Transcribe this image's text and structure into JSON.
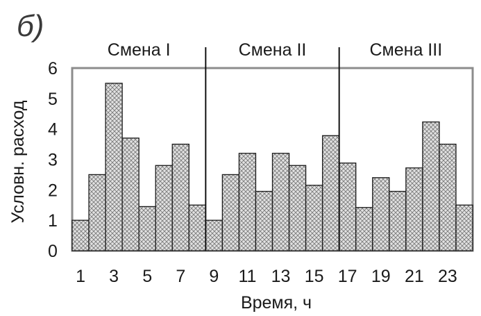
{
  "panel_label": "б)",
  "chart_data": {
    "type": "bar",
    "xlabel": "Время, ч",
    "ylabel": "Условн. расход",
    "ylim": [
      0,
      6
    ],
    "yticks": [
      0,
      1,
      2,
      3,
      4,
      5,
      6
    ],
    "x": [
      1,
      2,
      3,
      4,
      5,
      6,
      7,
      8,
      9,
      10,
      11,
      12,
      13,
      14,
      15,
      16,
      17,
      18,
      19,
      20,
      21,
      22,
      23,
      24
    ],
    "xtick_labels": [
      "1",
      "3",
      "5",
      "7",
      "9",
      "11",
      "13",
      "15",
      "17",
      "19",
      "21",
      "23"
    ],
    "values": [
      1.0,
      2.5,
      5.5,
      3.7,
      1.45,
      2.8,
      3.5,
      1.5,
      1.0,
      2.5,
      3.2,
      1.95,
      3.2,
      2.8,
      2.15,
      3.78,
      2.88,
      1.42,
      2.4,
      1.95,
      2.72,
      4.23,
      3.5,
      1.5
    ],
    "bar_fill": "crosshatch",
    "bar_color": "#d8d8d8",
    "shifts": [
      {
        "label": "Смена I",
        "hours": [
          1,
          8
        ]
      },
      {
        "label": "Смена II",
        "hours": [
          9,
          16
        ]
      },
      {
        "label": "Смена III",
        "hours": [
          17,
          24
        ]
      }
    ],
    "grid": false
  }
}
